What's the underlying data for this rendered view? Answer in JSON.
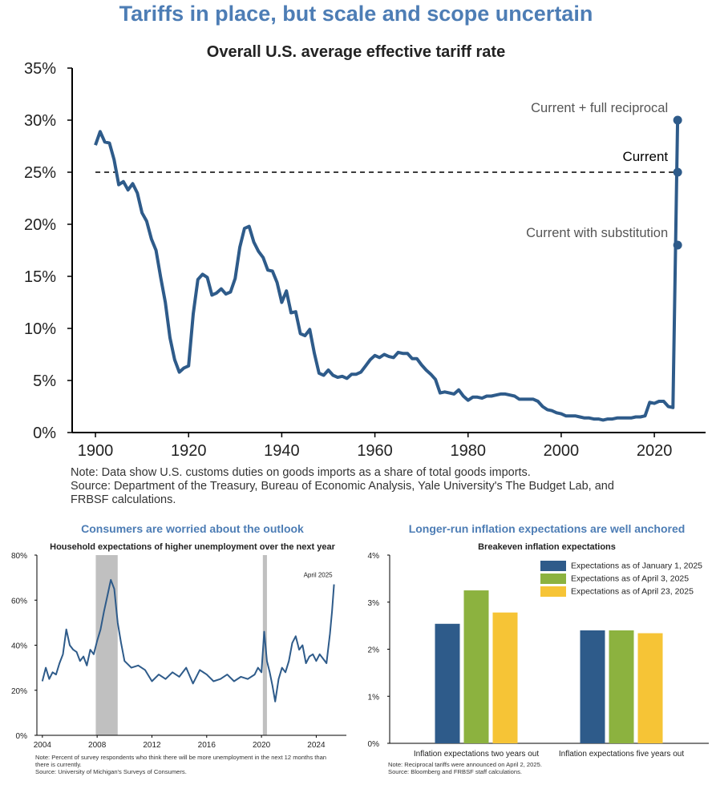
{
  "header": {
    "title": "Tariffs in place, but scale and scope uncertain"
  },
  "main_note": {
    "line1": "Note: Data show U.S. customs duties on goods imports as a share of total goods imports.",
    "line2": "Source: Department of the Treasury, Bureau of Economic Analysis, Yale University's The Budget Lab, and",
    "line3": "FRBSF calculations."
  },
  "left_panel": {
    "title": "Consumers are worried about the outlook",
    "note_line1": "Note: Percent of survey respondents who think there will be more unemployment in the next 12 months than",
    "note_line2": "there is currently.",
    "note_line3": "Source: University of Michigan's Surveys of Consumers."
  },
  "right_panel": {
    "title": "Longer-run inflation expectations are well anchored",
    "note_line1": "Note: Reciprocal tariffs were announced on April 2, 2025.",
    "note_line2": "Source: Bloomberg and FRBSF staff calculations."
  },
  "colors": {
    "title_blue": "#4d7db5",
    "series_blue": "#2e5b8a",
    "bar_blue": "#2e5b8a",
    "bar_green": "#8cb23f",
    "bar_yellow": "#f6c436",
    "recession_gray": "#c0c0c0"
  },
  "chart_data": [
    {
      "type": "line",
      "title": "Overall U.S. average effective tariff rate",
      "xlabel": "",
      "ylabel": "",
      "xlim": [
        1895,
        2031
      ],
      "ylim": [
        0,
        35
      ],
      "xticks": [
        1900,
        1920,
        1940,
        1960,
        1980,
        2000,
        2020
      ],
      "yticks": [
        0,
        5,
        10,
        15,
        20,
        25,
        30,
        35
      ],
      "ytick_labels": [
        "0%",
        "5%",
        "10%",
        "15%",
        "20%",
        "25%",
        "30%",
        "35%"
      ],
      "grid": false,
      "series": [
        {
          "x": [
            1900,
            1901,
            1902,
            1903,
            1904,
            1905,
            1906,
            1907,
            1908,
            1909,
            1910,
            1911,
            1912,
            1913,
            1914,
            1915,
            1916,
            1917,
            1918,
            1919,
            1920,
            1921,
            1922,
            1923,
            1924,
            1925,
            1926,
            1927,
            1928,
            1929,
            1930,
            1931,
            1932,
            1933,
            1934,
            1935,
            1936,
            1937,
            1938,
            1939,
            1940,
            1941,
            1942,
            1943,
            1944,
            1945,
            1946,
            1947,
            1948,
            1949,
            1950,
            1951,
            1952,
            1953,
            1954,
            1955,
            1956,
            1957,
            1958,
            1959,
            1960,
            1961,
            1962,
            1963,
            1964,
            1965,
            1966,
            1967,
            1968,
            1969,
            1970,
            1971,
            1972,
            1973,
            1974,
            1975,
            1976,
            1977,
            1978,
            1979,
            1980,
            1981,
            1982,
            1983,
            1984,
            1985,
            1986,
            1987,
            1988,
            1989,
            1990,
            1991,
            1992,
            1993,
            1994,
            1995,
            1996,
            1997,
            1998,
            1999,
            2000,
            2001,
            2002,
            2003,
            2004,
            2005,
            2006,
            2007,
            2008,
            2009,
            2010,
            2011,
            2012,
            2013,
            2014,
            2015,
            2016,
            2017,
            2018,
            2019,
            2020,
            2021,
            2022,
            2023,
            2024,
            2025
          ],
          "values": [
            27.6,
            28.9,
            27.9,
            27.8,
            26.2,
            23.8,
            24.1,
            23.3,
            23.9,
            23.0,
            21.1,
            20.3,
            18.6,
            17.5,
            14.9,
            12.5,
            9.1,
            7.0,
            5.8,
            6.2,
            6.4,
            11.4,
            14.7,
            15.2,
            14.9,
            13.2,
            13.4,
            13.8,
            13.3,
            13.5,
            14.8,
            17.8,
            19.6,
            19.8,
            18.3,
            17.4,
            16.8,
            15.6,
            15.5,
            14.4,
            12.5,
            13.6,
            11.5,
            11.6,
            9.5,
            9.3,
            9.9,
            7.6,
            5.7,
            5.5,
            6.0,
            5.5,
            5.3,
            5.4,
            5.2,
            5.6,
            5.6,
            5.8,
            6.4,
            7.0,
            7.4,
            7.2,
            7.5,
            7.3,
            7.2,
            7.7,
            7.6,
            7.6,
            7.1,
            7.1,
            6.5,
            6.0,
            5.6,
            5.1,
            3.8,
            3.9,
            3.8,
            3.7,
            4.1,
            3.5,
            3.1,
            3.4,
            3.4,
            3.3,
            3.5,
            3.5,
            3.6,
            3.7,
            3.7,
            3.6,
            3.5,
            3.2,
            3.2,
            3.2,
            3.2,
            3.0,
            2.5,
            2.2,
            2.1,
            1.9,
            1.8,
            1.6,
            1.6,
            1.6,
            1.5,
            1.4,
            1.4,
            1.3,
            1.3,
            1.2,
            1.3,
            1.3,
            1.4,
            1.4,
            1.4,
            1.4,
            1.5,
            1.5,
            1.6,
            2.9,
            2.8,
            3.0,
            3.0,
            2.5,
            2.4,
            30.0
          ]
        }
      ],
      "reference_line": {
        "y": 25,
        "style": "dashed",
        "x_start": 1900,
        "x_end": 2025,
        "label": "Current"
      },
      "annotations": [
        {
          "label": "Current + full reciprocal",
          "x": 2025,
          "y": 30
        },
        {
          "label": "Current",
          "x": 2025,
          "y": 25
        },
        {
          "label": "Current with substitution",
          "x": 2025,
          "y": 18
        }
      ]
    },
    {
      "type": "line",
      "title": "Household expectations of higher unemployment over the next year",
      "xlabel": "",
      "ylabel": "",
      "xlim": [
        2003.6,
        2026.2
      ],
      "ylim": [
        0,
        80
      ],
      "xticks": [
        2004,
        2008,
        2012,
        2016,
        2020,
        2024
      ],
      "yticks": [
        0,
        20,
        40,
        60,
        80
      ],
      "ytick_labels": [
        "0%",
        "20%",
        "40%",
        "60%",
        "80%"
      ],
      "grid": false,
      "shaded_periods": [
        {
          "start": 2007.9,
          "end": 2009.5
        },
        {
          "start": 2020.1,
          "end": 2020.4
        }
      ],
      "series": [
        {
          "x": [
            2004,
            2004.25,
            2004.5,
            2004.75,
            2005,
            2005.25,
            2005.5,
            2005.75,
            2006,
            2006.25,
            2006.5,
            2006.75,
            2007,
            2007.25,
            2007.5,
            2007.75,
            2008,
            2008.25,
            2008.5,
            2008.75,
            2009,
            2009.25,
            2009.5,
            2009.75,
            2010,
            2010.5,
            2011,
            2011.5,
            2012,
            2012.5,
            2013,
            2013.5,
            2014,
            2014.5,
            2015,
            2015.5,
            2016,
            2016.5,
            2017,
            2017.5,
            2018,
            2018.5,
            2019,
            2019.5,
            2019.75,
            2020,
            2020.2,
            2020.4,
            2020.6,
            2020.8,
            2021,
            2021.25,
            2021.5,
            2021.75,
            2022,
            2022.25,
            2022.5,
            2022.75,
            2023,
            2023.25,
            2023.5,
            2023.75,
            2024,
            2024.25,
            2024.5,
            2024.75,
            2025,
            2025.15,
            2025.3
          ],
          "values": [
            24,
            30,
            25,
            28,
            27,
            32,
            36,
            47,
            40,
            38,
            37,
            33,
            35,
            31,
            38,
            36,
            42,
            47,
            55,
            62,
            69,
            65,
            50,
            41,
            33,
            30,
            31,
            29,
            24,
            27,
            25,
            28,
            26,
            30,
            23,
            29,
            27,
            24,
            25,
            27,
            24,
            26,
            25,
            27,
            30,
            28,
            46,
            33,
            28,
            22,
            15,
            25,
            30,
            28,
            33,
            41,
            44,
            38,
            40,
            32,
            35,
            36,
            33,
            36,
            34,
            32,
            45,
            55,
            67
          ]
        }
      ],
      "annotations": [
        {
          "label": "April 2025",
          "x": 2025.3,
          "y": 67
        }
      ]
    },
    {
      "type": "bar",
      "title": "Breakeven inflation expectations",
      "categories": [
        "Inflation expectations two years out",
        "Inflation expectations five years out"
      ],
      "ylim": [
        0,
        4
      ],
      "yticks": [
        0,
        1,
        2,
        3,
        4
      ],
      "ytick_labels": [
        "0%",
        "1%",
        "2%",
        "3%",
        "4%"
      ],
      "legend": "top-right",
      "grid": false,
      "series": [
        {
          "name": "Expectations as of January 1, 2025",
          "values": [
            2.54,
            2.4
          ]
        },
        {
          "name": "Expectations as of April 3, 2025",
          "values": [
            3.25,
            2.4
          ]
        },
        {
          "name": "Expectations as of April 23, 2025",
          "values": [
            2.78,
            2.34
          ]
        }
      ]
    }
  ]
}
